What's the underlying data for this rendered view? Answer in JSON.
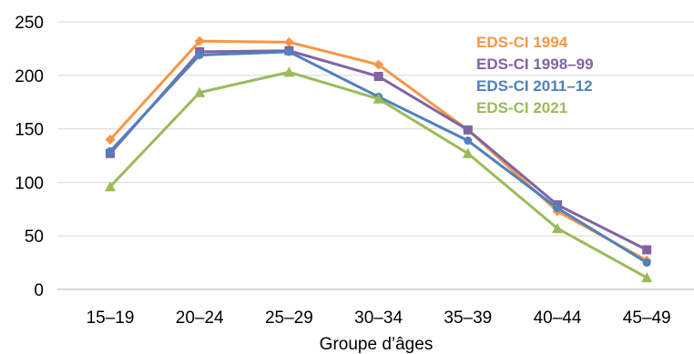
{
  "chart_data": {
    "type": "line",
    "xlabel": "Groupe d’âges",
    "ylabel": "",
    "ylim": [
      0,
      250
    ],
    "yticks": [
      0,
      50,
      100,
      150,
      200,
      250
    ],
    "grid": "horizontal",
    "legend": "top-right",
    "categories": [
      "15–19",
      "20–24",
      "25–29",
      "30–34",
      "35–39",
      "40–44",
      "45–49"
    ],
    "series": [
      {
        "name": "EDS-CI 1994",
        "color": "#F79646",
        "marker": "diamond",
        "values": [
          140,
          232,
          231,
          210,
          149,
          73,
          27
        ]
      },
      {
        "name": "EDS-CI 1998–99",
        "color": "#8064A2",
        "marker": "square",
        "values": [
          127,
          222,
          223,
          199,
          149,
          79,
          37
        ]
      },
      {
        "name": "EDS-CI 2011–12",
        "color": "#4F81BD",
        "marker": "circle",
        "values": [
          129,
          219,
          222,
          180,
          139,
          76,
          25
        ]
      },
      {
        "name": "EDS-CI 2021",
        "color": "#9BBB59",
        "marker": "triangle",
        "values": [
          96,
          184,
          203,
          178,
          127,
          57,
          11
        ]
      }
    ]
  }
}
